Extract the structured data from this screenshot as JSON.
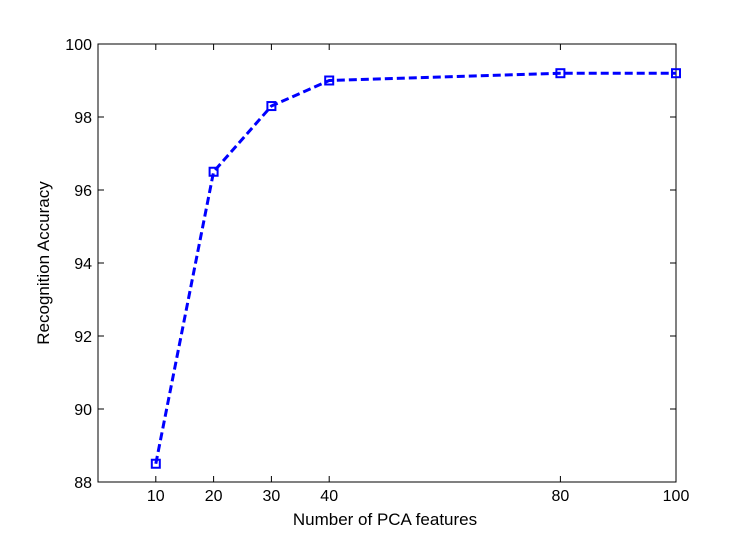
{
  "chart_data": {
    "type": "line",
    "title": "",
    "xlabel": "Number of PCA features",
    "ylabel": "Recognition Accuracy",
    "x": [
      10,
      20,
      30,
      40,
      80,
      100
    ],
    "series": [
      {
        "values": [
          88.5,
          96.5,
          98.3,
          99.0,
          99.2,
          99.2
        ],
        "color": "#0000ff",
        "line_style": "dashed",
        "marker": "square"
      }
    ],
    "xlim": [
      0,
      100
    ],
    "ylim": [
      88,
      100
    ],
    "x_ticks": [
      10,
      20,
      30,
      40,
      80,
      100
    ],
    "y_ticks": [
      88,
      90,
      92,
      94,
      96,
      98,
      100
    ],
    "grid": false,
    "legend": "none"
  }
}
